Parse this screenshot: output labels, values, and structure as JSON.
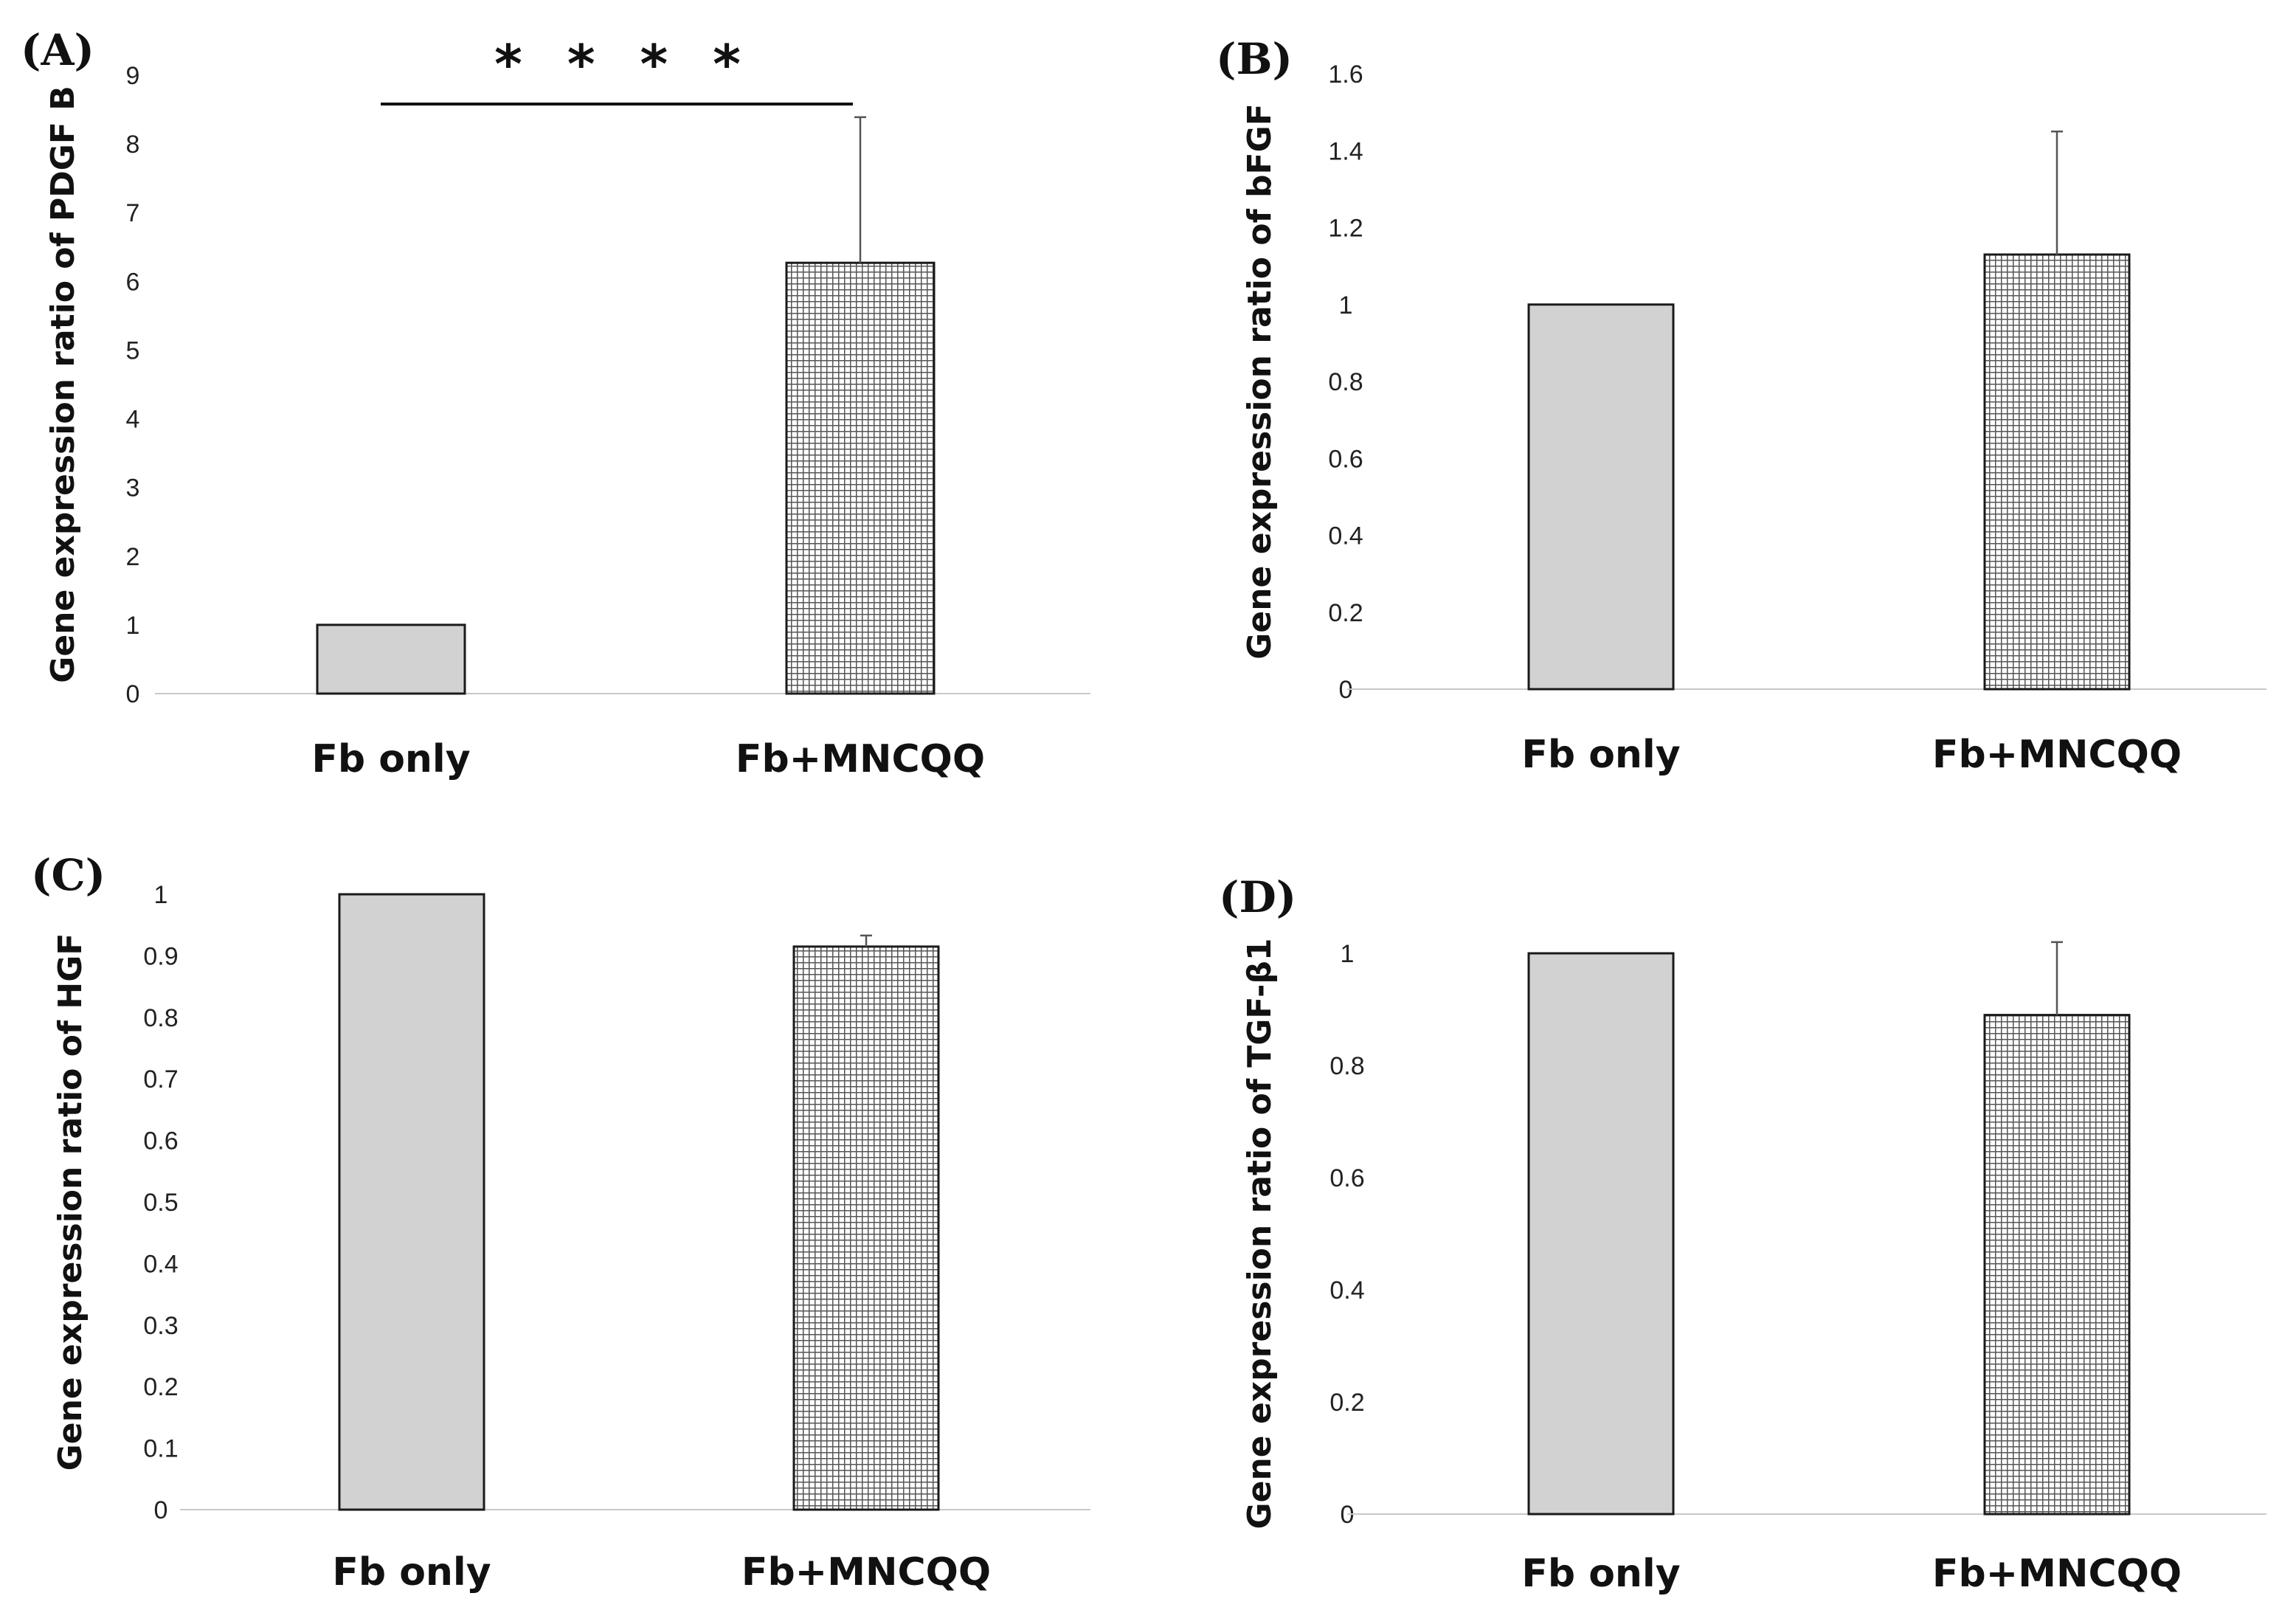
{
  "figure": {
    "description_panels": [
      "A",
      "B",
      "C",
      "D"
    ]
  },
  "chart_data": [
    {
      "type": "bar",
      "panel": "(A)",
      "categories": [
        "Fb only",
        "Fb+MNCQQ"
      ],
      "values": [
        1.0,
        6.27
      ],
      "errors": [
        0.0,
        2.12
      ],
      "ylabel": "Gene expression ratio of PDGF B",
      "ylim": [
        0,
        9
      ],
      "yticks": [
        "0",
        "1",
        "2",
        "3",
        "4",
        "5",
        "6",
        "7",
        "8",
        "9"
      ],
      "significance": "* * * *",
      "styles": [
        "solid",
        "hatched"
      ],
      "colors": {
        "solid": "#d2d2d2",
        "hatched": "#6a6a6a"
      }
    },
    {
      "type": "bar",
      "panel": "(B)",
      "categories": [
        "Fb only",
        "Fb+MNCQQ"
      ],
      "values": [
        1.0,
        1.13
      ],
      "errors": [
        0.0,
        0.32
      ],
      "ylabel": "Gene expression ratio of bFGF",
      "ylim": [
        0,
        1.6
      ],
      "yticks": [
        "0",
        "0.2",
        "0.4",
        "0.6",
        "0.8",
        "1",
        "1.2",
        "1.4",
        "1.6"
      ],
      "styles": [
        "solid",
        "hatched"
      ],
      "colors": {
        "solid": "#d2d2d2",
        "hatched": "#6a6a6a"
      }
    },
    {
      "type": "bar",
      "panel": "(C)",
      "categories": [
        "Fb only",
        "Fb+MNCQQ"
      ],
      "values": [
        1.0,
        0.915
      ],
      "errors": [
        0.0,
        0.018
      ],
      "ylabel": "Gene expression ratio of HGF",
      "ylim": [
        0,
        1
      ],
      "yticks": [
        "0",
        "0.1",
        "0.2",
        "0.3",
        "0.4",
        "0.5",
        "0.6",
        "0.7",
        "0.8",
        "0.9",
        "1"
      ],
      "styles": [
        "solid",
        "hatched"
      ],
      "colors": {
        "solid": "#d2d2d2",
        "hatched": "#6a6a6a"
      }
    },
    {
      "type": "bar",
      "panel": "(D)",
      "categories": [
        "Fb only",
        "Fb+MNCQQ"
      ],
      "values": [
        1.0,
        0.89
      ],
      "errors": [
        0.0,
        0.13
      ],
      "ylabel": "Gene expression ratio of TGF-β1",
      "ylim": [
        0,
        1
      ],
      "yticks": [
        "0",
        "0.2",
        "0.4",
        "0.6",
        "0.8",
        "1"
      ],
      "styles": [
        "solid",
        "hatched"
      ],
      "colors": {
        "solid": "#d2d2d2",
        "hatched": "#6a6a6a"
      }
    }
  ]
}
